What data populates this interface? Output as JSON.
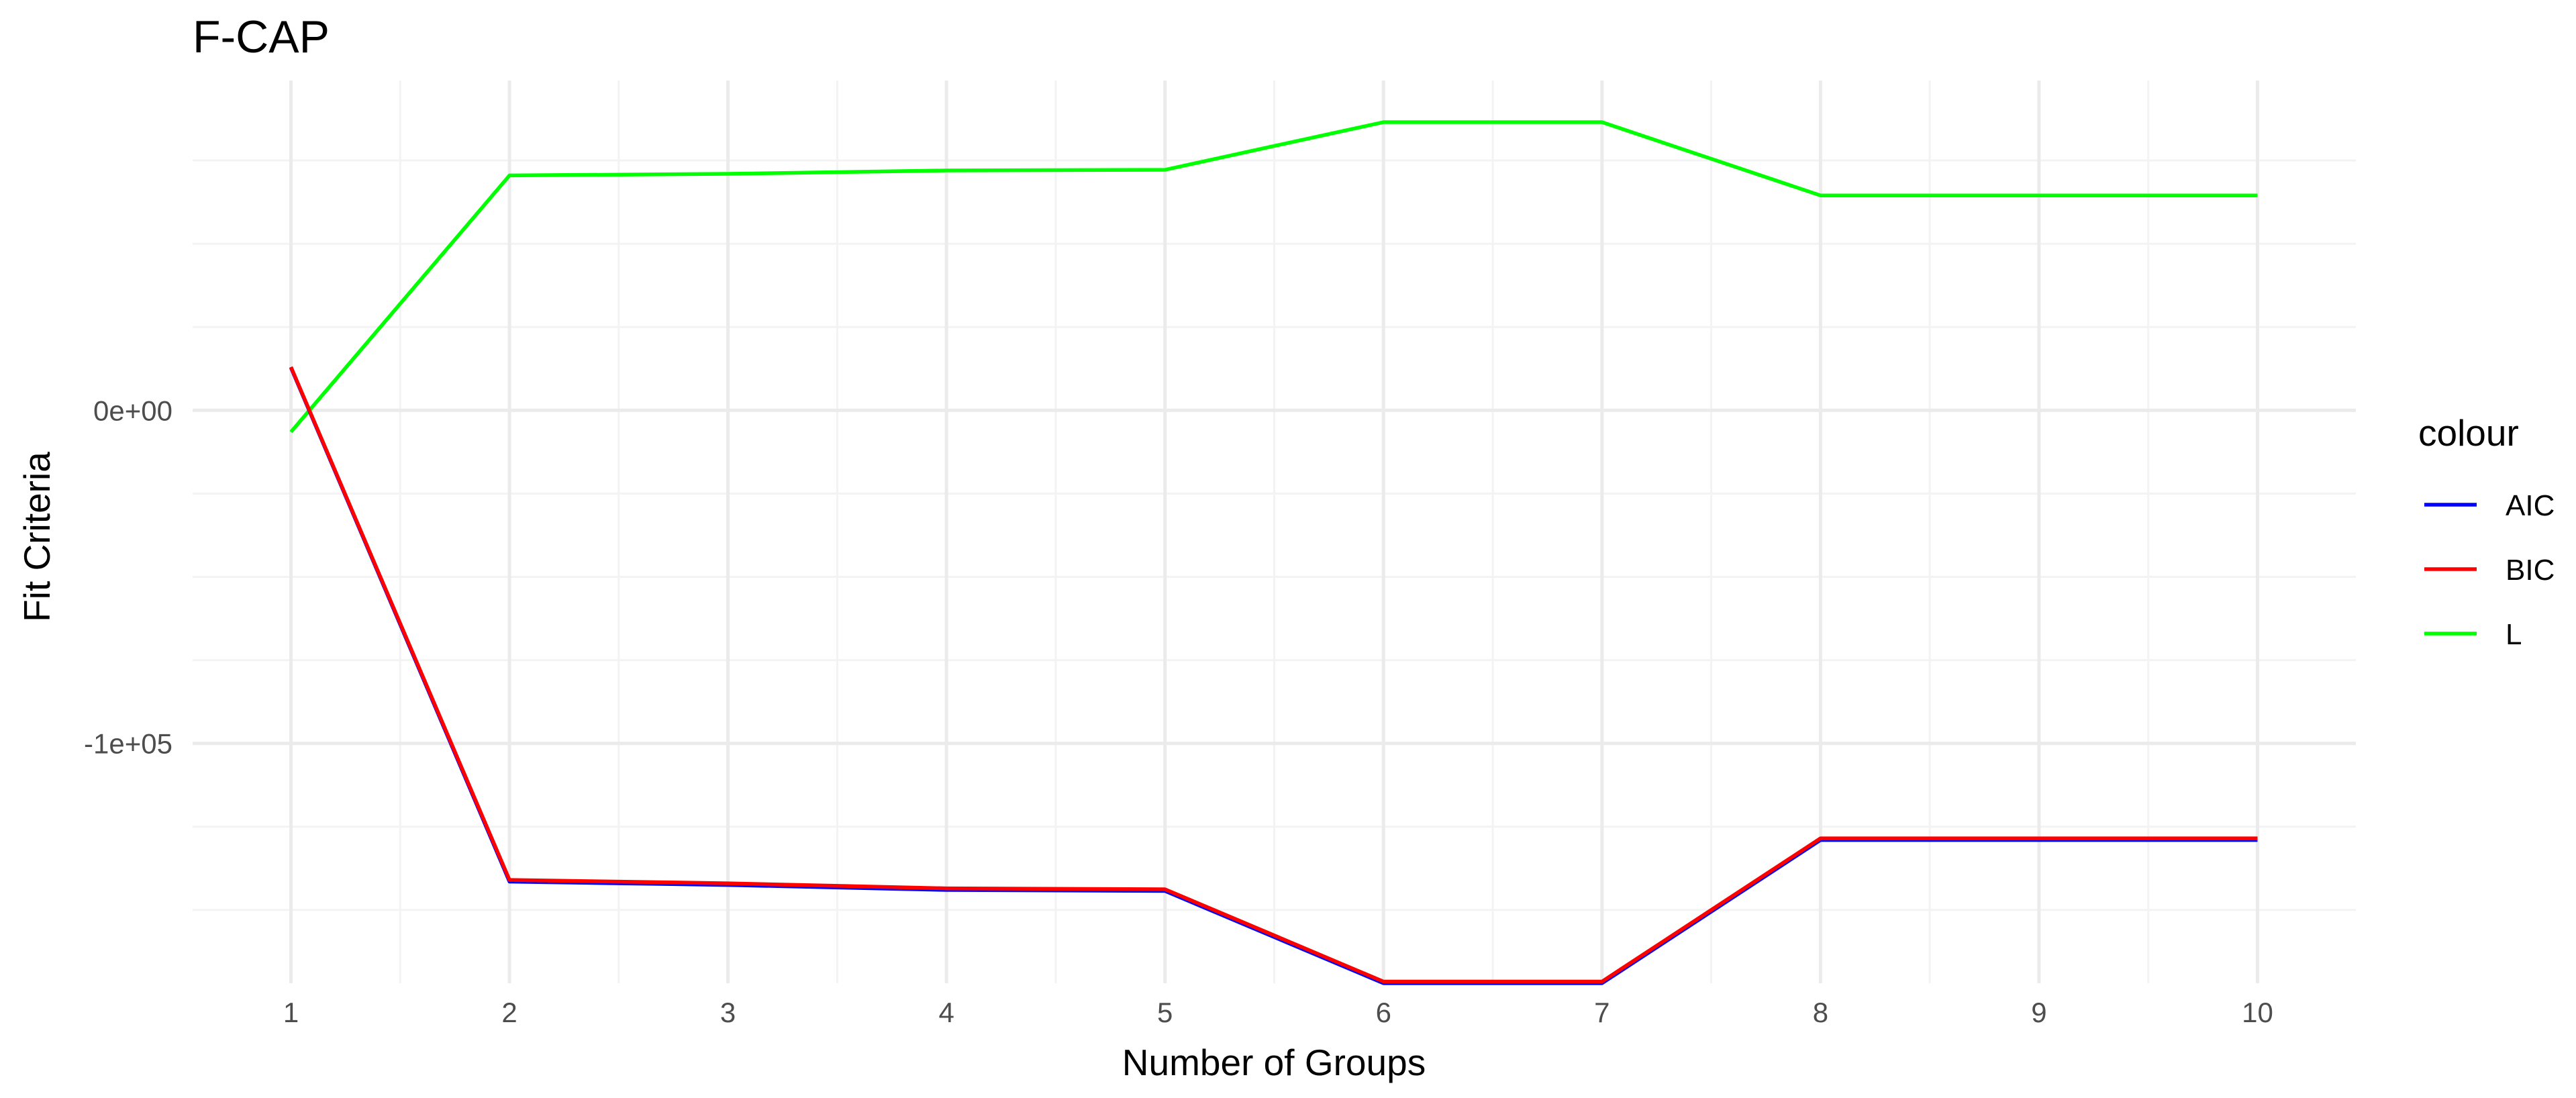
{
  "chart_data": {
    "type": "line",
    "title": "F-CAP",
    "xlabel": "Number of Groups",
    "ylabel": "Fit Criteria",
    "x": [
      1,
      2,
      3,
      4,
      5,
      6,
      7,
      8,
      9,
      10
    ],
    "xlim": [
      0.55,
      10.45
    ],
    "ylim": [
      -172000,
      99000
    ],
    "x_ticks": [
      1,
      2,
      3,
      4,
      5,
      6,
      7,
      8,
      9,
      10
    ],
    "x_tick_labels": [
      "1",
      "2",
      "3",
      "4",
      "5",
      "6",
      "7",
      "8",
      "9",
      "10"
    ],
    "y_ticks": [
      0,
      -100000
    ],
    "y_tick_labels": [
      "0e+00",
      "-1e+05"
    ],
    "y_minor_ticks": [
      75000,
      50000,
      25000,
      -25000,
      -50000,
      -75000,
      -125000,
      -150000
    ],
    "grid": true,
    "legend": {
      "title": "colour",
      "position": "right",
      "entries": [
        {
          "name": "AIC",
          "color": "#0000ff"
        },
        {
          "name": "BIC",
          "color": "#ff0000"
        },
        {
          "name": "L",
          "color": "#00ff00"
        }
      ]
    },
    "series": [
      {
        "name": "AIC",
        "color": "#0000ff",
        "values": [
          12800,
          -141500,
          -142500,
          -144000,
          -144300,
          -172000,
          -172000,
          -129000,
          -129000,
          -129000
        ]
      },
      {
        "name": "BIC",
        "color": "#ff0000",
        "values": [
          13000,
          -141000,
          -142000,
          -143500,
          -143800,
          -171500,
          -171500,
          -128500,
          -128500,
          -128500
        ]
      },
      {
        "name": "L",
        "color": "#00ff00",
        "values": [
          -6500,
          70500,
          71000,
          72000,
          72200,
          86500,
          86500,
          64500,
          64500,
          64500
        ]
      }
    ]
  }
}
